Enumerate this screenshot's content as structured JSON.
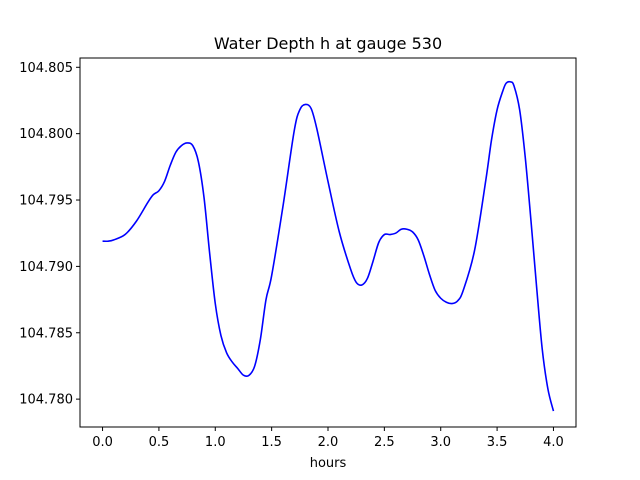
{
  "chart_data": {
    "type": "line",
    "title": "Water Depth h at gauge 530",
    "xlabel": "hours",
    "ylabel": "",
    "xlim": [
      -0.2,
      4.2
    ],
    "ylim": [
      104.7779,
      104.8057
    ],
    "xticks": [
      0.0,
      0.5,
      1.0,
      1.5,
      2.0,
      2.5,
      3.0,
      3.5,
      4.0
    ],
    "xtick_labels": [
      "0.0",
      "0.5",
      "1.0",
      "1.5",
      "2.0",
      "2.5",
      "3.0",
      "3.5",
      "4.0"
    ],
    "yticks": [
      104.78,
      104.785,
      104.79,
      104.795,
      104.8,
      104.805
    ],
    "ytick_labels": [
      "104.780",
      "104.785",
      "104.790",
      "104.795",
      "104.800",
      "104.805"
    ],
    "grid": false,
    "series": [
      {
        "color": "#0000ff",
        "x": [
          0.0,
          0.05,
          0.1,
          0.2,
          0.3,
          0.4,
          0.45,
          0.5,
          0.55,
          0.6,
          0.65,
          0.7,
          0.75,
          0.8,
          0.85,
          0.9,
          0.95,
          1.0,
          1.05,
          1.1,
          1.15,
          1.2,
          1.25,
          1.3,
          1.35,
          1.4,
          1.45,
          1.5,
          1.6,
          1.7,
          1.75,
          1.8,
          1.85,
          1.9,
          2.0,
          2.1,
          2.2,
          2.25,
          2.3,
          2.35,
          2.4,
          2.45,
          2.5,
          2.55,
          2.6,
          2.65,
          2.7,
          2.75,
          2.8,
          2.85,
          2.9,
          2.95,
          3.0,
          3.05,
          3.1,
          3.15,
          3.2,
          3.3,
          3.4,
          3.45,
          3.5,
          3.55,
          3.58,
          3.62,
          3.65,
          3.7,
          3.75,
          3.8,
          3.85,
          3.9,
          3.95,
          4.0
        ],
        "y": [
          104.7919,
          104.7919,
          104.792,
          104.7924,
          104.7934,
          104.7948,
          104.7954,
          104.7957,
          104.7964,
          104.7976,
          104.7986,
          104.7991,
          104.7993,
          104.7991,
          104.7979,
          104.7952,
          104.791,
          104.7872,
          104.7848,
          104.7835,
          104.7828,
          104.7823,
          104.7818,
          104.7818,
          104.7825,
          104.7845,
          104.7875,
          104.7893,
          104.7945,
          104.8002,
          104.8018,
          104.8022,
          104.8019,
          104.8004,
          104.7964,
          104.7926,
          104.7898,
          104.7888,
          104.7886,
          104.7891,
          104.7904,
          104.7918,
          104.7924,
          104.7924,
          104.7925,
          104.7928,
          104.7928,
          104.7926,
          104.792,
          104.7908,
          104.7894,
          104.7882,
          104.7876,
          104.7873,
          104.7872,
          104.7874,
          104.7882,
          104.7912,
          104.7965,
          104.7995,
          104.8018,
          104.8032,
          104.8038,
          104.8039,
          104.8036,
          104.8018,
          104.7982,
          104.7935,
          104.7885,
          104.7838,
          104.7808,
          104.7791
        ]
      }
    ]
  }
}
